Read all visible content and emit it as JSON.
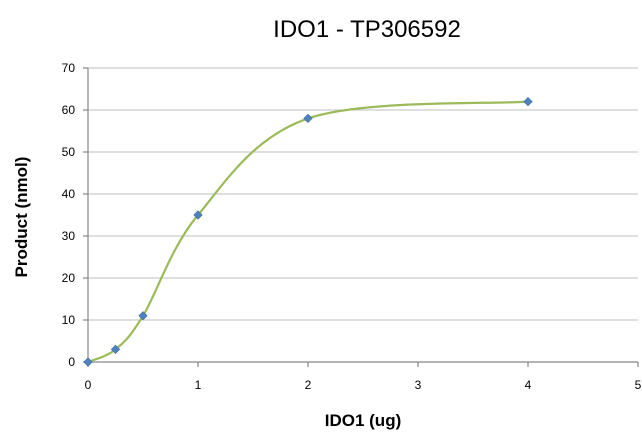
{
  "chart_data": {
    "type": "line",
    "title": "IDO1 - TP306592",
    "xlabel": "IDO1 (ug)",
    "ylabel": "Product (nmol)",
    "xlim": [
      0,
      5
    ],
    "ylim": [
      0,
      70
    ],
    "x_ticks": [
      0,
      1,
      2,
      3,
      4,
      5
    ],
    "y_ticks": [
      0,
      10,
      20,
      30,
      40,
      50,
      60,
      70
    ],
    "grid": "horizontal",
    "legend": "none",
    "series": [
      {
        "x": [
          0,
          0.25,
          0.5,
          1.0,
          2.0,
          4.0
        ],
        "y": [
          0,
          3,
          11,
          35,
          58,
          62
        ],
        "line_color": "#9bbb59",
        "marker_color": "#4f81bd",
        "marker": "diamond"
      }
    ]
  }
}
